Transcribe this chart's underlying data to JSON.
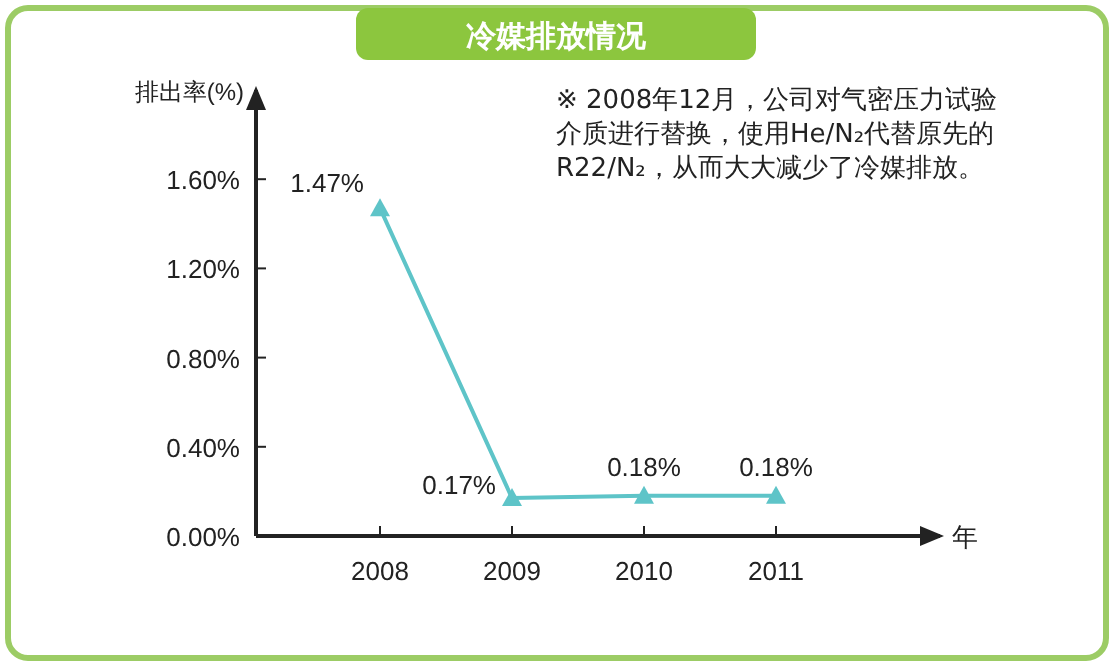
{
  "chart_data": {
    "type": "line",
    "title": "冷媒排放情况",
    "ylabel": "排出率(%)",
    "xlabel": "年",
    "categories": [
      "2008",
      "2009",
      "2010",
      "2011"
    ],
    "series": [
      {
        "color": "#5ec4c8",
        "values": [
          1.47,
          0.17,
          0.18,
          0.18
        ],
        "value_labels": [
          "1.47%",
          "0.17%",
          "0.18%",
          "0.18%"
        ]
      }
    ],
    "ylim": [
      0,
      2.0
    ],
    "yticks": [
      {
        "value": 0,
        "label": "0.00%"
      },
      {
        "value": 0.4,
        "label": "0.40%"
      },
      {
        "value": 0.8,
        "label": "0.80%"
      },
      {
        "value": 1.2,
        "label": "1.20%"
      },
      {
        "value": 1.6,
        "label": "1.60%"
      }
    ],
    "marker": "triangle",
    "grid": false,
    "annotations": [
      "※ 2008年12月，公司对气密压力试验介质进行替换，使用He/N₂代替原先的R22/N₂，从而大大减少了冷媒排放。"
    ]
  }
}
